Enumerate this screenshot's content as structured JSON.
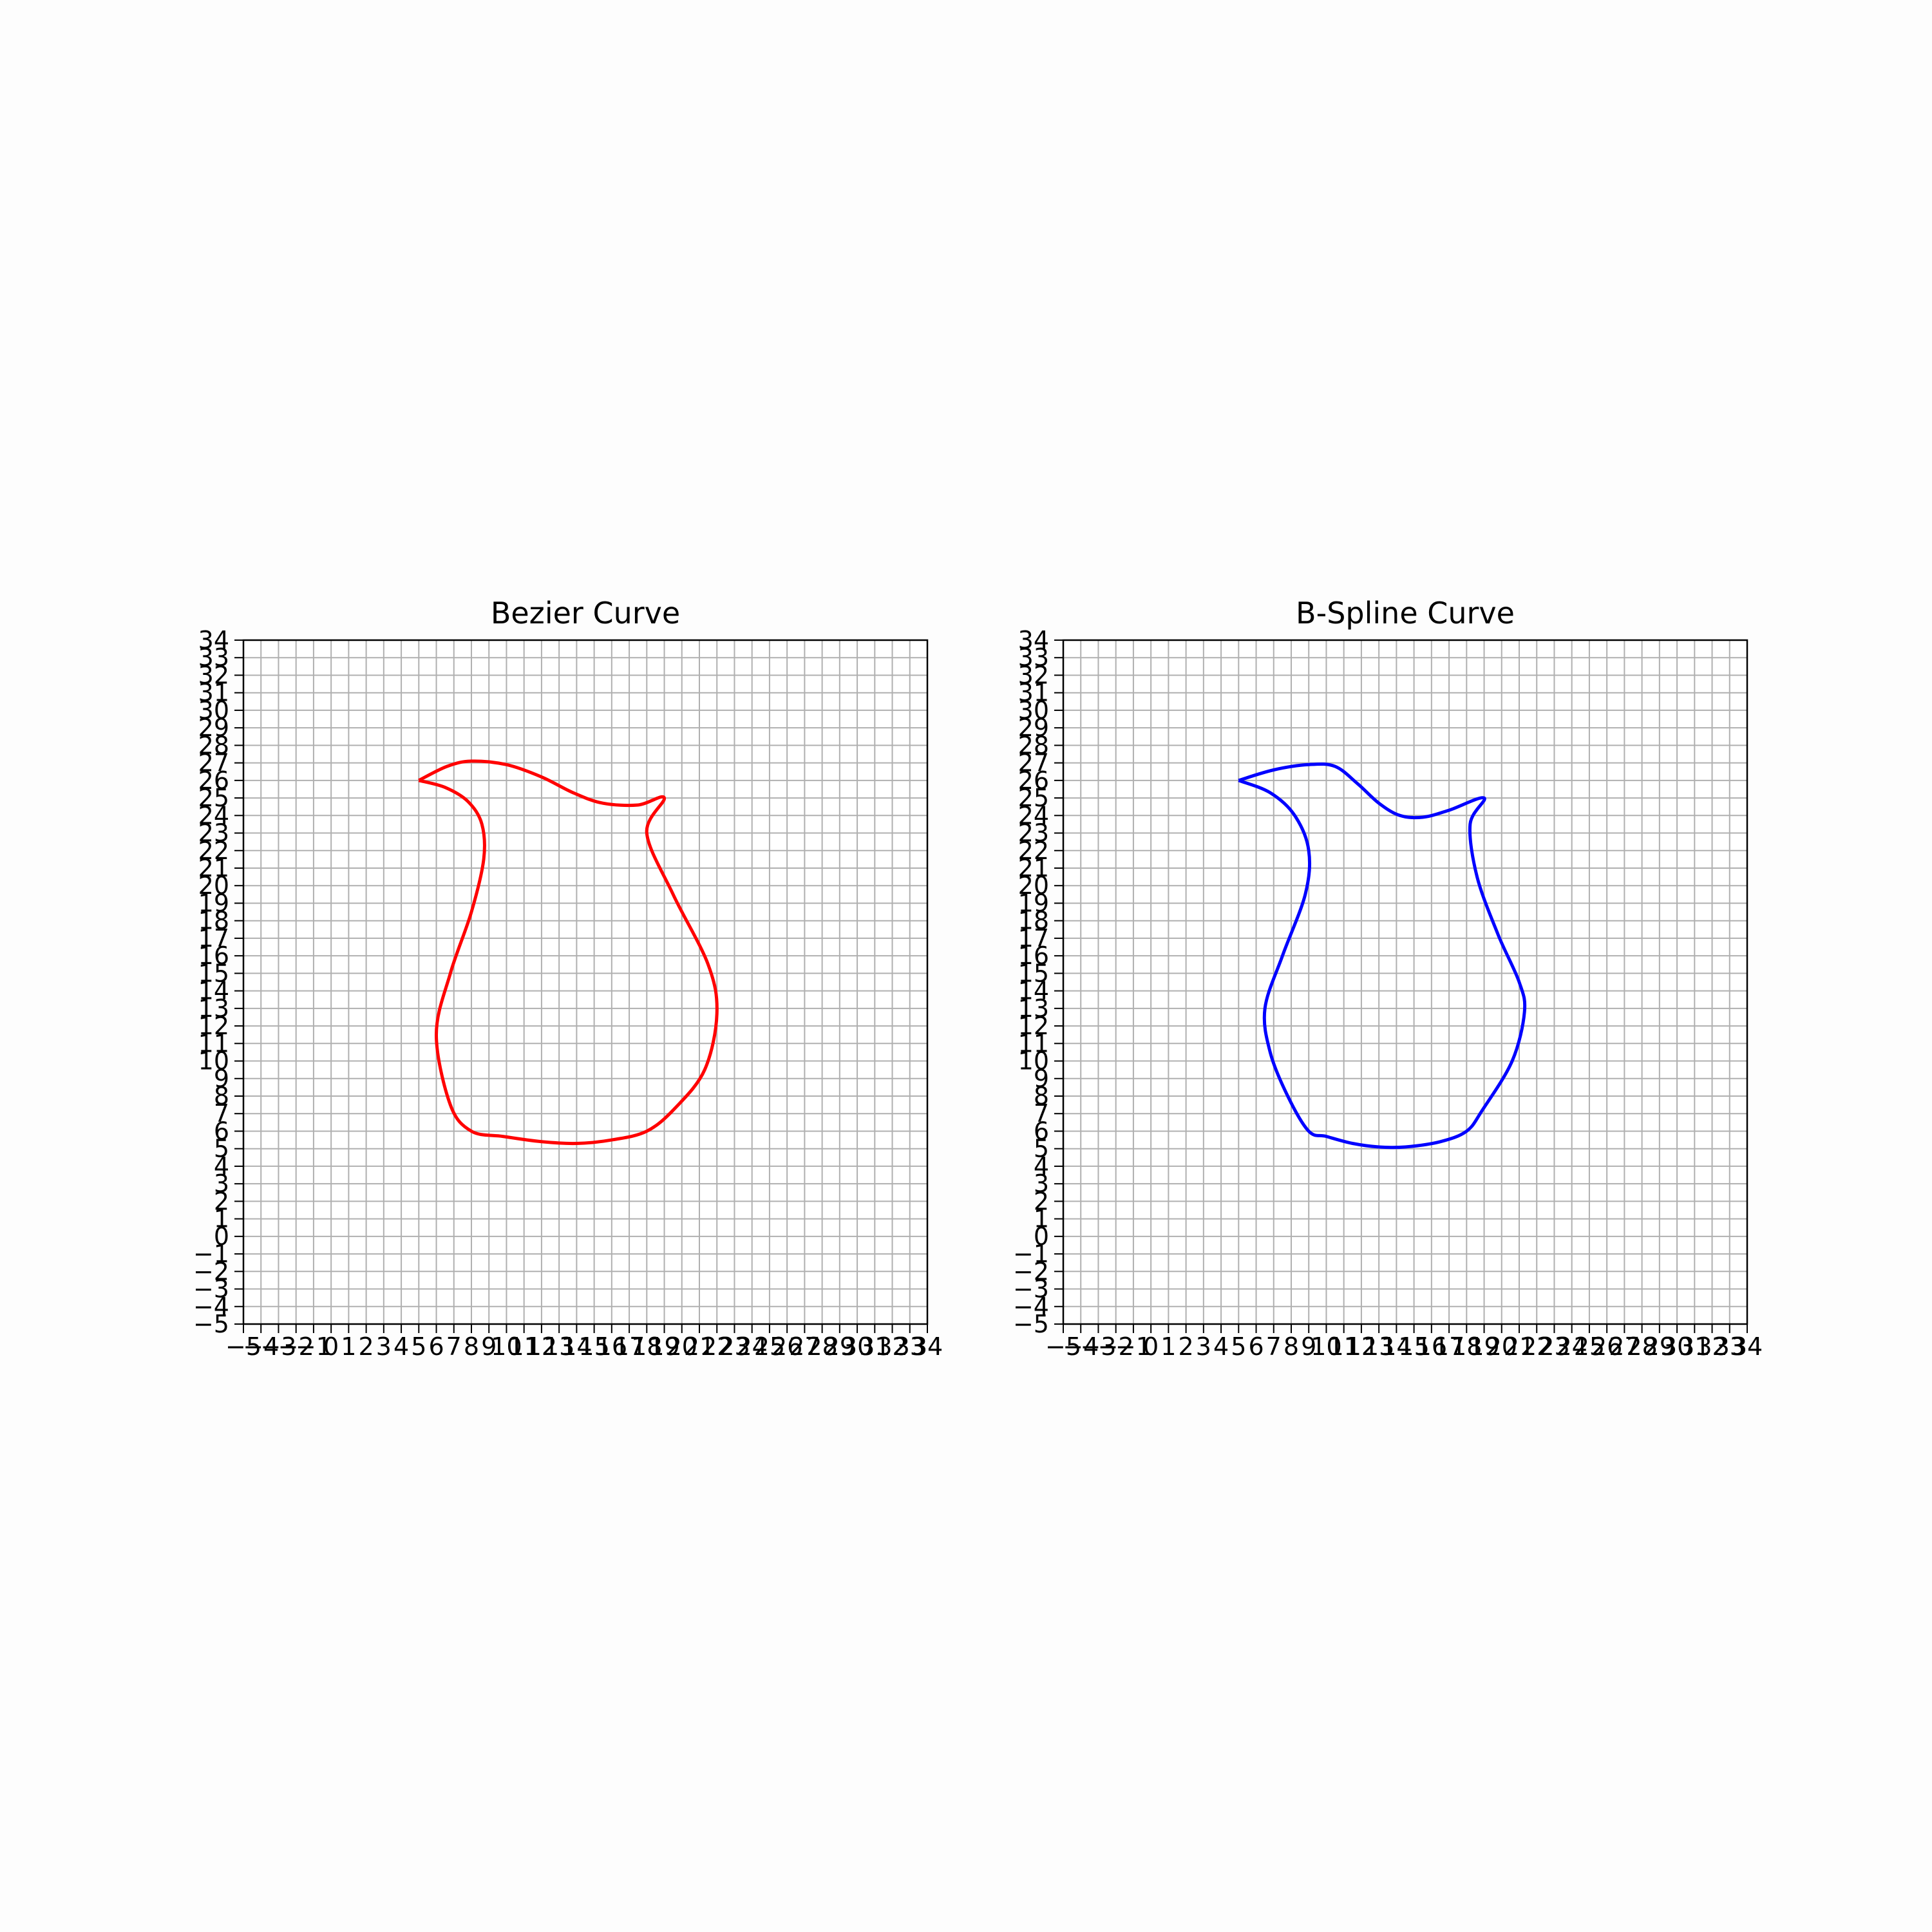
{
  "chart_data": [
    {
      "type": "line",
      "title": "Bezier Curve",
      "xlabel": "",
      "ylabel": "",
      "xlim": [
        -5,
        34
      ],
      "ylim": [
        -5,
        34
      ],
      "grid": true,
      "color": "#ff0000",
      "xticks": [
        -5,
        -4,
        -3,
        -2,
        -1,
        0,
        1,
        2,
        3,
        4,
        5,
        6,
        7,
        8,
        9,
        10,
        11,
        12,
        13,
        14,
        15,
        16,
        17,
        18,
        19,
        20,
        21,
        22,
        23,
        24,
        25,
        26,
        27,
        28,
        29,
        30,
        31,
        32,
        33,
        34
      ],
      "yticks": [
        -5,
        -4,
        -3,
        -2,
        -1,
        0,
        1,
        2,
        3,
        4,
        5,
        6,
        7,
        8,
        9,
        10,
        11,
        12,
        13,
        14,
        15,
        16,
        17,
        18,
        19,
        20,
        21,
        22,
        23,
        24,
        25,
        26,
        27,
        28,
        29,
        30,
        31,
        32,
        33,
        34
      ],
      "series": [
        {
          "x": [
            5.0,
            6.6,
            8.0,
            10.0,
            12.0,
            13.8,
            15.5,
            17.5,
            19.0,
            18.0,
            19.5,
            21.5,
            22.0,
            21.3,
            19.6,
            18.0,
            16.0,
            14.0,
            12.0,
            9.8,
            8.0,
            6.8,
            6.0,
            6.8,
            8.0,
            8.7,
            8.6,
            7.8,
            6.5,
            5.0
          ],
          "y": [
            26.0,
            26.8,
            27.1,
            26.9,
            26.2,
            25.3,
            24.7,
            24.6,
            25.0,
            23.0,
            19.5,
            15.5,
            12.7,
            9.5,
            7.3,
            6.0,
            5.5,
            5.3,
            5.4,
            5.7,
            6.0,
            7.5,
            11.5,
            15.0,
            18.5,
            21.5,
            23.5,
            24.8,
            25.6,
            26.0
          ]
        }
      ]
    },
    {
      "type": "line",
      "title": "B-Spline Curve",
      "xlabel": "",
      "ylabel": "",
      "xlim": [
        -5,
        34
      ],
      "ylim": [
        -5,
        34
      ],
      "grid": true,
      "color": "#0000ff",
      "xticks": [
        -5,
        -4,
        -3,
        -2,
        -1,
        0,
        1,
        2,
        3,
        4,
        5,
        6,
        7,
        8,
        9,
        10,
        11,
        12,
        13,
        14,
        15,
        16,
        17,
        18,
        19,
        20,
        21,
        22,
        23,
        24,
        25,
        26,
        27,
        28,
        29,
        30,
        31,
        32,
        33,
        34
      ],
      "yticks": [
        -5,
        -4,
        -3,
        -2,
        -1,
        0,
        1,
        2,
        3,
        4,
        5,
        6,
        7,
        8,
        9,
        10,
        11,
        12,
        13,
        14,
        15,
        16,
        17,
        18,
        19,
        20,
        21,
        22,
        23,
        24,
        25,
        26,
        27,
        28,
        29,
        30,
        31,
        32,
        33,
        34
      ],
      "series": [
        {
          "x": [
            5.0,
            7.0,
            9.0,
            10.5,
            11.8,
            13.0,
            14.2,
            15.5,
            17.0,
            19.0,
            18.2,
            18.6,
            19.8,
            21.0,
            21.3,
            20.6,
            18.9,
            18.0,
            16.5,
            14.5,
            13.0,
            11.5,
            10.0,
            9.0,
            7.8,
            6.8,
            6.5,
            7.5,
            8.8,
            9.0,
            8.2,
            6.8,
            5.0
          ],
          "y": [
            26.0,
            26.6,
            26.9,
            26.8,
            25.8,
            24.7,
            24.0,
            23.9,
            24.3,
            25.0,
            23.5,
            20.5,
            17.2,
            14.5,
            12.8,
            10.0,
            7.2,
            6.0,
            5.4,
            5.1,
            5.1,
            5.3,
            5.7,
            6.0,
            8.0,
            10.5,
            13.0,
            16.0,
            19.5,
            22.0,
            24.0,
            25.3,
            26.0
          ]
        }
      ]
    }
  ]
}
